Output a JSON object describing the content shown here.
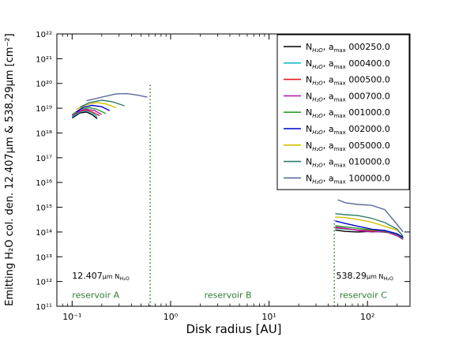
{
  "chart_data": {
    "type": "line",
    "xlabel": "Disk radius [AU]",
    "ylabel": "Emitting H₂O col. den. 12.407μm & 538.29μm [cm⁻²]",
    "x_scale": "log",
    "y_scale": "log",
    "xlim": [
      0.07,
      270
    ],
    "ylim": [
      100000000000.0,
      1e+22
    ],
    "x_ticks": [
      {
        "value": 0.1,
        "label": "10⁻¹"
      },
      {
        "value": 1,
        "label": "10⁰"
      },
      {
        "value": 10,
        "label": "10¹"
      },
      {
        "value": 100,
        "label": "10²"
      }
    ],
    "y_ticks": [
      {
        "value": 100000000000.0,
        "label": "10¹¹"
      },
      {
        "value": 1000000000000.0,
        "label": "10¹²"
      },
      {
        "value": 10000000000000.0,
        "label": "10¹³"
      },
      {
        "value": 100000000000000.0,
        "label": "10¹⁴"
      },
      {
        "value": 1000000000000000.0,
        "label": "10¹⁵"
      },
      {
        "value": 1e+16,
        "label": "10¹⁶"
      },
      {
        "value": 1e+17,
        "label": "10¹⁷"
      },
      {
        "value": 1e+18,
        "label": "10¹⁸"
      },
      {
        "value": 1e+19,
        "label": "10¹⁹"
      },
      {
        "value": 1e+20,
        "label": "10²⁰"
      },
      {
        "value": 1e+21,
        "label": "10²¹"
      },
      {
        "value": 1e+22,
        "label": "10²²"
      }
    ],
    "legend_position": "top-right",
    "boundaries": [
      {
        "x": 0.62,
        "y_top": 1e+20,
        "color": "#2e7d32"
      },
      {
        "x": 46,
        "y_top": 300000000000000.0,
        "color": "#2e7d32"
      }
    ],
    "annotations": [
      {
        "text": "12.407μm Nₕ₂ₒ",
        "display": "12.407",
        "sub": "μm N",
        "subsub": "H₂O",
        "x": 0.1,
        "y": 1300000000000.0,
        "color": "#000000"
      },
      {
        "text": "538.29μm N H2O",
        "display": "538.29",
        "sub": "μm N",
        "subsub": "H₂O",
        "x": 48,
        "y": 1300000000000.0,
        "color": "#000000"
      },
      {
        "text": "reservoir A",
        "x": 0.1,
        "y": 220000000000.0,
        "color": "#2e7d32"
      },
      {
        "text": "reservoir B",
        "x": 2.2,
        "y": 220000000000.0,
        "color": "#2e7d32"
      },
      {
        "text": "reservoir C",
        "x": 52,
        "y": 220000000000.0,
        "color": "#2e7d32"
      }
    ],
    "series": [
      {
        "name": "N H2O, a max 000250.0",
        "legend_value": "000250.0",
        "color": "#000000",
        "inner": {
          "x": [
            0.1,
            0.12,
            0.14,
            0.16,
            0.18
          ],
          "y": [
            4e+18,
            6.5e+18,
            7e+18,
            5.5e+18,
            3.8e+18
          ]
        },
        "outer": {
          "x": [
            47,
            60,
            80,
            110,
            150,
            200,
            230
          ],
          "y": [
            120000000000000.0,
            105000000000000.0,
            100000000000000.0,
            105000000000000.0,
            100000000000000.0,
            80000000000000.0,
            60000000000000.0
          ]
        }
      },
      {
        "name": "N H2O, a max 000400.0",
        "legend_value": "000400.0",
        "color": "#17becf",
        "inner": {
          "x": [
            0.1,
            0.12,
            0.14,
            0.16,
            0.18
          ],
          "y": [
            4.5e+18,
            7e+18,
            8e+18,
            6.5e+18,
            4.5e+18
          ]
        },
        "outer": {
          "x": [
            47,
            60,
            80,
            110,
            150,
            200,
            230
          ],
          "y": [
            140000000000000.0,
            130000000000000.0,
            120000000000000.0,
            115000000000000.0,
            110000000000000.0,
            80000000000000.0,
            60000000000000.0
          ]
        }
      },
      {
        "name": "N H2O, a max 000500.0",
        "legend_value": "000500.0",
        "color": "#e41a1c",
        "inner": {
          "x": [
            0.1,
            0.12,
            0.14,
            0.16,
            0.19
          ],
          "y": [
            5e+18,
            7.5e+18,
            8.5e+18,
            7e+18,
            5e+18
          ]
        },
        "outer": {
          "x": [
            47,
            60,
            80,
            110,
            150,
            200,
            230
          ],
          "y": [
            150000000000000.0,
            135000000000000.0,
            120000000000000.0,
            110000000000000.0,
            105000000000000.0,
            75000000000000.0,
            55000000000000.0
          ]
        }
      },
      {
        "name": "N H2O, a max 000700.0",
        "legend_value": "000700.0",
        "color": "#b31eb3",
        "inner": {
          "x": [
            0.1,
            0.12,
            0.14,
            0.17,
            0.2
          ],
          "y": [
            5e+18,
            8e+18,
            9e+18,
            8e+18,
            5.5e+18
          ]
        },
        "outer": {
          "x": [
            47,
            60,
            80,
            110,
            150,
            200,
            230
          ],
          "y": [
            160000000000000.0,
            140000000000000.0,
            115000000000000.0,
            100000000000000.0,
            105000000000000.0,
            70000000000000.0,
            50000000000000.0
          ]
        }
      },
      {
        "name": "N H2O, a max 001000.0",
        "legend_value": "001000.0",
        "color": "#2ca02c",
        "inner": {
          "x": [
            0.1,
            0.12,
            0.15,
            0.18,
            0.22
          ],
          "y": [
            5.5e+18,
            9e+18,
            1.05e+19,
            9e+18,
            6e+18
          ]
        },
        "outer": {
          "x": [
            47,
            60,
            80,
            110,
            150,
            200,
            230
          ],
          "y": [
            180000000000000.0,
            160000000000000.0,
            140000000000000.0,
            120000000000000.0,
            110000000000000.0,
            80000000000000.0,
            55000000000000.0
          ]
        }
      },
      {
        "name": "N H2O, a max 002000.0",
        "legend_value": "002000.0",
        "color": "#0000cc",
        "inner": {
          "x": [
            0.11,
            0.13,
            0.16,
            0.2,
            0.24
          ],
          "y": [
            7e+18,
            1.1e+19,
            1.3e+19,
            1.15e+19,
            8e+18
          ]
        },
        "outer": {
          "x": [
            47,
            60,
            80,
            110,
            150,
            200,
            230
          ],
          "y": [
            280000000000000.0,
            220000000000000.0,
            170000000000000.0,
            130000000000000.0,
            115000000000000.0,
            85000000000000.0,
            60000000000000.0
          ]
        }
      },
      {
        "name": "N H2O, a max 005000.0",
        "legend_value": "005000.0",
        "color": "#d4c200",
        "inner": {
          "x": [
            0.11,
            0.14,
            0.18,
            0.22,
            0.28
          ],
          "y": [
            9e+18,
            1.4e+19,
            1.7e+19,
            1.5e+19,
            1.05e+19
          ]
        },
        "outer": {
          "x": [
            47,
            60,
            80,
            110,
            150,
            200,
            230
          ],
          "y": [
            400000000000000.0,
            380000000000000.0,
            320000000000000.0,
            250000000000000.0,
            170000000000000.0,
            120000000000000.0,
            70000000000000.0
          ]
        }
      },
      {
        "name": "N H2O, a max 010000.0",
        "legend_value": "010000.0",
        "color": "#2e7d6b",
        "inner": {
          "x": [
            0.12,
            0.15,
            0.2,
            0.26,
            0.34
          ],
          "y": [
            1.1e+19,
            1.7e+19,
            2.1e+19,
            1.8e+19,
            1.25e+19
          ]
        },
        "outer": {
          "x": [
            47,
            60,
            80,
            110,
            150,
            200,
            230
          ],
          "y": [
            550000000000000.0,
            500000000000000.0,
            460000000000000.0,
            360000000000000.0,
            240000000000000.0,
            130000000000000.0,
            65000000000000.0
          ]
        }
      },
      {
        "name": "N H2O, a max 100000.0",
        "legend_value": "100000.0",
        "color": "#5a6a9a",
        "inner": {
          "x": [
            0.14,
            0.2,
            0.28,
            0.36,
            0.46,
            0.58
          ],
          "y": [
            2e+19,
            2.8e+19,
            3.8e+19,
            3.9e+19,
            3.4e+19,
            2.8e+19
          ]
        },
        "outer": {
          "x": [
            50,
            60,
            80,
            110,
            150,
            200,
            230
          ],
          "y": [
            2000000000000000.0,
            1500000000000000.0,
            1300000000000000.0,
            1200000000000000.0,
            800000000000000.0,
            200000000000000.0,
            100000000000000.0
          ]
        }
      }
    ]
  }
}
